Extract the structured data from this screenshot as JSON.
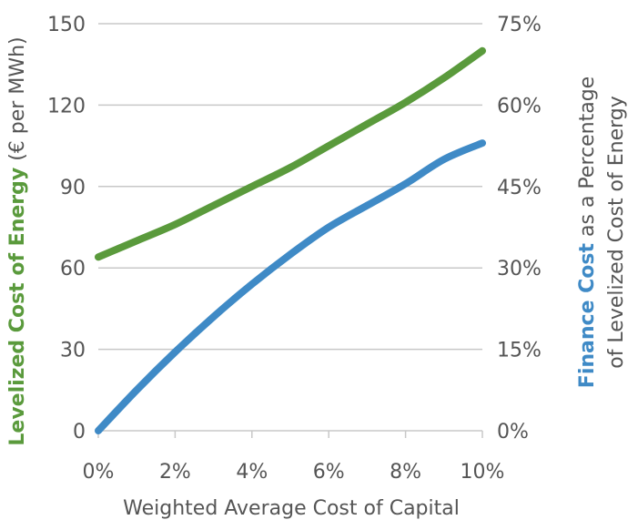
{
  "chart_data": {
    "type": "line",
    "x": [
      0,
      1,
      2,
      3,
      4,
      5,
      6,
      7,
      8,
      9,
      10
    ],
    "x_tick_labels": [
      "0%",
      "2%",
      "4%",
      "6%",
      "8%",
      "10%"
    ],
    "x_ticks": [
      0,
      2,
      4,
      6,
      8,
      10
    ],
    "xlabel": "Weighted Average Cost of Capital",
    "xlim": [
      0,
      10
    ],
    "y_left": {
      "label_bold": "Levelized Cost of Energy",
      "label_rest": " (€ per MWh)",
      "ticks": [
        0,
        30,
        60,
        90,
        120,
        150
      ],
      "tick_labels": [
        "0",
        "30",
        "60",
        "90",
        "120",
        "150"
      ],
      "lim": [
        0,
        150
      ]
    },
    "y_right": {
      "label_bold": "Finance Cost",
      "label_rest": " as a Percentage",
      "label_line2": "of Levelized Cost of Energy",
      "ticks": [
        0,
        15,
        30,
        45,
        60,
        75
      ],
      "tick_labels": [
        "0%",
        "15%",
        "30%",
        "45%",
        "60%",
        "75%"
      ],
      "lim": [
        0,
        75
      ]
    },
    "series": [
      {
        "axis": "left",
        "color": "#5a9a3c",
        "values": [
          64,
          70,
          76,
          83,
          90,
          97,
          105,
          113,
          121,
          130,
          140
        ]
      },
      {
        "axis": "right",
        "color": "#3f8ac6",
        "values": [
          0,
          7.5,
          14.5,
          21,
          27,
          32.5,
          37.5,
          41.5,
          45.5,
          50,
          53
        ]
      }
    ],
    "grid": "horizontal"
  }
}
